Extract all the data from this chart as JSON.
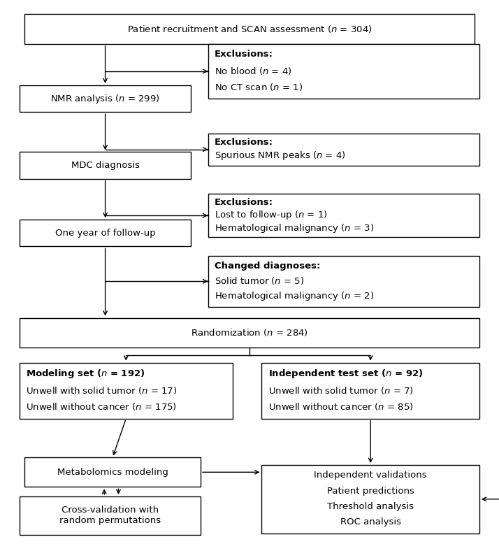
{
  "bg_color": "#ffffff",
  "fs": 9.5,
  "boxes": {
    "recruit": [
      0.04,
      0.928,
      0.92,
      0.056
    ],
    "nmr": [
      0.03,
      0.8,
      0.35,
      0.05
    ],
    "excl1": [
      0.415,
      0.825,
      0.555,
      0.103
    ],
    "mdc": [
      0.03,
      0.675,
      0.35,
      0.05
    ],
    "excl2": [
      0.415,
      0.7,
      0.555,
      0.06
    ],
    "followup": [
      0.03,
      0.548,
      0.35,
      0.05
    ],
    "excl3": [
      0.415,
      0.565,
      0.555,
      0.082
    ],
    "changed": [
      0.415,
      0.435,
      0.555,
      0.095
    ],
    "random": [
      0.03,
      0.358,
      0.94,
      0.056
    ],
    "modeling": [
      0.03,
      0.225,
      0.435,
      0.105
    ],
    "indep": [
      0.525,
      0.225,
      0.445,
      0.105
    ],
    "metab": [
      0.04,
      0.097,
      0.36,
      0.055
    ],
    "cross": [
      0.03,
      0.007,
      0.37,
      0.072
    ],
    "indepval": [
      0.525,
      0.01,
      0.445,
      0.128
    ]
  },
  "mlbox_texts": {
    "excl1": [
      [
        "Exclusions:",
        true
      ],
      [
        "No blood ($\\it{n}$ = 4)",
        false
      ],
      [
        "No CT scan ($\\it{n}$ = 1)",
        false
      ]
    ],
    "excl2": [
      [
        "Exclusions:",
        true
      ],
      [
        "Spurious NMR peaks ($\\it{n}$ = 4)",
        false
      ]
    ],
    "excl3": [
      [
        "Exclusions:",
        true
      ],
      [
        "Lost to follow-up ($\\it{n}$ = 1)",
        false
      ],
      [
        "Hematological malignancy ($\\it{n}$ = 3)",
        false
      ]
    ],
    "changed": [
      [
        "Changed diagnoses:",
        true
      ],
      [
        "Solid tumor ($\\it{n}$ = 5)",
        false
      ],
      [
        "Hematological malignancy ($\\it{n}$ = 2)",
        false
      ]
    ],
    "modeling": [
      [
        "Modeling set ($\\it{n}$ = 192)",
        true
      ],
      [
        "Unwell with solid tumor ($\\it{n}$ = 17)",
        false
      ],
      [
        "Unwell without cancer ($\\it{n}$ = 175)",
        false
      ]
    ],
    "indep": [
      [
        "Independent test set ($\\it{n}$ = 92)",
        true
      ],
      [
        "Unwell with solid tumor ($\\it{n}$ = 7)",
        false
      ],
      [
        "Unwell without cancer ($\\it{n}$ = 85)",
        false
      ]
    ]
  },
  "center_texts": {
    "recruit": "Patient recruitment and SCAN assessment ($\\it{n}$ = 304)",
    "nmr": "NMR analysis ($\\it{n}$ = 299)",
    "mdc": "MDC diagnosis",
    "followup": "One year of follow-up",
    "random": "Randomization ($\\it{n}$ = 284)",
    "metab": "Metabolomics modeling",
    "cross": "Cross-validation with\nrandom permutations"
  },
  "indepval_lines": [
    "Independent validations",
    "Patient predictions",
    "Threshold analysis",
    "ROC analysis"
  ]
}
